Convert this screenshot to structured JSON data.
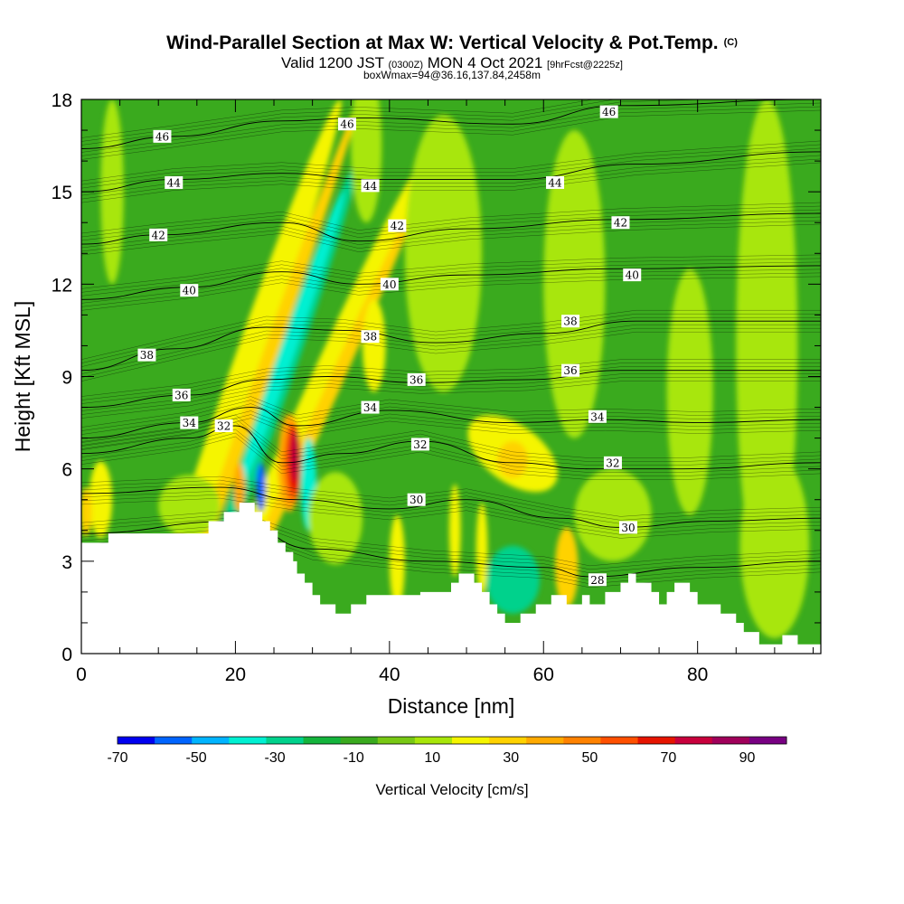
{
  "header": {
    "title": "Wind-Parallel Section at Max W: Vertical Velocity & Pot.Temp.",
    "copyright": "(C)",
    "valid": "Valid 1200 JST",
    "valid_utc": "(0300Z)",
    "date": "MON 4 Oct 2021",
    "forecast": "[9hrFcst@2225z]",
    "box": "boxWmax=94@36.16,137.84,2458m"
  },
  "chart_data": {
    "type": "heatmap",
    "xlabel": "Distance [nm]",
    "ylabel": "Height [Kft MSL]",
    "xlim": [
      0,
      96
    ],
    "ylim": [
      0,
      18
    ],
    "x_ticks": [
      "0",
      "20",
      "40",
      "60",
      "80"
    ],
    "x_tick_values": [
      0,
      20,
      40,
      60,
      80
    ],
    "y_ticks": [
      "0",
      "3",
      "6",
      "9",
      "12",
      "15",
      "18"
    ],
    "y_tick_values": [
      0,
      3,
      6,
      9,
      12,
      15,
      18
    ],
    "x_minor_step": 5,
    "y_minor_step": 1,
    "background_color": "#3aaa1e",
    "terrain_profile": {
      "x": [
        0,
        3.5,
        3.5,
        16.5,
        16.5,
        18.5,
        18.5,
        20.5,
        20.5,
        22.5,
        22.5,
        23.5,
        23.5,
        24.5,
        24.5,
        25.5,
        25.5,
        26.5,
        26.5,
        27.5,
        27.5,
        28,
        28,
        29,
        29,
        30,
        30,
        31,
        31,
        32,
        32,
        33,
        33,
        35,
        35,
        37,
        37,
        40,
        40,
        44,
        44,
        48,
        48,
        49,
        49,
        51,
        51,
        52,
        52,
        53,
        53,
        54,
        54,
        55,
        55,
        57,
        57,
        59,
        59,
        61,
        61,
        63,
        63,
        65,
        65,
        66,
        66,
        68,
        68,
        70,
        70,
        71,
        71,
        72,
        72,
        74,
        74,
        75,
        75,
        76,
        76,
        77,
        77,
        79,
        79,
        80,
        80,
        83,
        83,
        85,
        85,
        86,
        86,
        87,
        87,
        88,
        88,
        91,
        91,
        93,
        93,
        96
      ],
      "y": [
        3.6,
        3.6,
        3.9,
        3.9,
        4.3,
        4.3,
        4.6,
        4.6,
        4.9,
        4.9,
        4.6,
        4.6,
        4.3,
        4.3,
        4.0,
        4.0,
        3.6,
        3.6,
        3.3,
        3.3,
        3.0,
        3.0,
        2.6,
        2.6,
        2.3,
        2.3,
        1.9,
        1.9,
        1.6,
        1.6,
        1.6,
        1.6,
        1.3,
        1.3,
        1.6,
        1.6,
        1.9,
        1.9,
        1.9,
        1.9,
        2.0,
        2.0,
        2.3,
        2.3,
        2.6,
        2.6,
        2.3,
        2.3,
        2.0,
        2.0,
        1.6,
        1.6,
        1.3,
        1.3,
        1.0,
        1.0,
        1.3,
        1.3,
        1.6,
        1.6,
        1.9,
        1.9,
        1.6,
        1.6,
        1.9,
        1.9,
        1.6,
        1.6,
        2.0,
        2.0,
        2.3,
        2.3,
        2.6,
        2.6,
        2.3,
        2.3,
        2.0,
        2.0,
        1.6,
        1.6,
        2.0,
        2.0,
        2.3,
        2.3,
        2.0,
        2.0,
        1.6,
        1.6,
        1.3,
        1.3,
        1.0,
        1.0,
        0.7,
        0.7,
        0.7,
        0.7,
        0.3,
        0.3,
        0.6,
        0.6,
        0.3,
        0.3
      ]
    },
    "vertical_velocity_cells": [
      {
        "x": 21,
        "y": 9,
        "w": 4,
        "h": 18,
        "color": "#f5f500",
        "skew": 0.35
      },
      {
        "x": 23.5,
        "y": 9,
        "w": 2,
        "h": 18,
        "color": "#ffd200",
        "skew": 0.35
      },
      {
        "x": 26,
        "y": 9,
        "w": 3,
        "h": 14,
        "color": "#00d28c",
        "skew": 0.35
      },
      {
        "x": 27,
        "y": 10,
        "w": 2,
        "h": 10,
        "color": "#00f0d2",
        "skew": 0.35
      },
      {
        "x": 30,
        "y": 8,
        "w": 4,
        "h": 16,
        "color": "#f5f500",
        "skew": 0.45
      },
      {
        "x": 31.5,
        "y": 8,
        "w": 2,
        "h": 14,
        "color": "#ffd200",
        "skew": 0.45
      },
      {
        "x": 27,
        "y": 6.2,
        "w": 3,
        "h": 3.2,
        "color": "#ffaa00",
        "skew": 0
      },
      {
        "x": 27.4,
        "y": 6.2,
        "w": 2.2,
        "h": 2.6,
        "color": "#ff6400",
        "skew": 0
      },
      {
        "x": 27.6,
        "y": 6.3,
        "w": 1.6,
        "h": 2.2,
        "color": "#e60000",
        "skew": 0
      },
      {
        "x": 27.8,
        "y": 6.4,
        "w": 1,
        "h": 1.6,
        "color": "#b4003c",
        "skew": 0
      },
      {
        "x": 23.3,
        "y": 5.4,
        "w": 1.2,
        "h": 1.6,
        "color": "#0064ff",
        "skew": 0
      },
      {
        "x": 29.5,
        "y": 5.5,
        "w": 2,
        "h": 3,
        "color": "#00f0d2",
        "skew": 0
      },
      {
        "x": 20.5,
        "y": 5.4,
        "w": 1.5,
        "h": 1.6,
        "color": "#ffaa00",
        "skew": 0
      },
      {
        "x": 2.5,
        "y": 5,
        "w": 3,
        "h": 2.5,
        "color": "#f5f500",
        "skew": 0
      },
      {
        "x": 0.6,
        "y": 4.6,
        "w": 1.5,
        "h": 1.6,
        "color": "#ffd200",
        "skew": 0
      },
      {
        "x": 56,
        "y": 6.5,
        "w": 10,
        "h": 2.5,
        "color": "#f5f500",
        "skew": -0.6
      },
      {
        "x": 56,
        "y": 6.3,
        "w": 4,
        "h": 1.2,
        "color": "#ffd200",
        "skew": 0
      },
      {
        "x": 56,
        "y": 2.4,
        "w": 7,
        "h": 2.2,
        "color": "#00d28c",
        "skew": 0
      },
      {
        "x": 63,
        "y": 2.8,
        "w": 3,
        "h": 2.6,
        "color": "#ffd200",
        "skew": 0
      },
      {
        "x": 41,
        "y": 3,
        "w": 2,
        "h": 3,
        "color": "#f5f500",
        "skew": 0
      },
      {
        "x": 48.5,
        "y": 4,
        "w": 1.5,
        "h": 3,
        "color": "#f5f500",
        "skew": 0
      },
      {
        "x": 52,
        "y": 3.4,
        "w": 1.5,
        "h": 3,
        "color": "#f5f500",
        "skew": 0
      },
      {
        "x": 38,
        "y": 10,
        "w": 3,
        "h": 3,
        "color": "#f5f500",
        "skew": 0
      },
      {
        "x": 79,
        "y": 8.5,
        "w": 6,
        "h": 8,
        "color": "#a8e60a",
        "skew": 0
      },
      {
        "x": 64,
        "y": 12,
        "w": 8,
        "h": 10,
        "color": "#a8e60a",
        "skew": 0
      },
      {
        "x": 47,
        "y": 13,
        "w": 10,
        "h": 9,
        "color": "#a8e60a",
        "skew": 0
      },
      {
        "x": 89,
        "y": 10,
        "w": 8,
        "h": 16,
        "color": "#a8e60a",
        "skew": 0
      },
      {
        "x": 90,
        "y": 3.5,
        "w": 9,
        "h": 6,
        "color": "#a8e60a",
        "skew": 0
      },
      {
        "x": 37,
        "y": 16.5,
        "w": 4,
        "h": 5,
        "color": "#a8e60a",
        "skew": 0
      },
      {
        "x": 14,
        "y": 4.8,
        "w": 8,
        "h": 2,
        "color": "#a8e60a",
        "skew": 0
      },
      {
        "x": 4,
        "y": 15,
        "w": 3,
        "h": 6,
        "color": "#a8e60a",
        "skew": 0
      },
      {
        "x": 33,
        "y": 4.4,
        "w": 7,
        "h": 3,
        "color": "#a8e60a",
        "skew": 0
      },
      {
        "x": 69,
        "y": 4.5,
        "w": 10,
        "h": 3,
        "color": "#a8e60a",
        "skew": 0
      }
    ],
    "isentropes": [
      {
        "level": 28,
        "points": [
          [
            0,
            3.9
          ],
          [
            20,
            4.3
          ],
          [
            30,
            3.4
          ],
          [
            45,
            3.0
          ],
          [
            60,
            2.8
          ],
          [
            66,
            2.5
          ],
          [
            80,
            2.8
          ],
          [
            96,
            3.0
          ]
        ]
      },
      {
        "level": 30,
        "points": [
          [
            0,
            5.2
          ],
          [
            18,
            5.4
          ],
          [
            28,
            5.0
          ],
          [
            40,
            4.7
          ],
          [
            50,
            5.0
          ],
          [
            62,
            4.4
          ],
          [
            70,
            4.1
          ],
          [
            82,
            4.3
          ],
          [
            96,
            4.4
          ]
        ]
      },
      {
        "level": 32,
        "points": [
          [
            0,
            6.5
          ],
          [
            14,
            7.0
          ],
          [
            20,
            7.4
          ],
          [
            26,
            6.2
          ],
          [
            34,
            6.5
          ],
          [
            44,
            6.9
          ],
          [
            56,
            6.2
          ],
          [
            66,
            6.0
          ],
          [
            78,
            6.0
          ],
          [
            96,
            6.2
          ]
        ]
      },
      {
        "level": 34,
        "points": [
          [
            0,
            7.0
          ],
          [
            14,
            7.5
          ],
          [
            22,
            8.0
          ],
          [
            28,
            7.4
          ],
          [
            40,
            7.9
          ],
          [
            56,
            7.5
          ],
          [
            68,
            7.6
          ],
          [
            80,
            7.5
          ],
          [
            96,
            7.6
          ]
        ]
      },
      {
        "level": 36,
        "points": [
          [
            0,
            8.0
          ],
          [
            14,
            8.4
          ],
          [
            24,
            8.9
          ],
          [
            32,
            9.0
          ],
          [
            44,
            8.8
          ],
          [
            58,
            8.9
          ],
          [
            70,
            9.2
          ],
          [
            96,
            9.2
          ]
        ]
      },
      {
        "level": 38,
        "points": [
          [
            0,
            9.2
          ],
          [
            12,
            9.9
          ],
          [
            24,
            10.6
          ],
          [
            34,
            10.5
          ],
          [
            46,
            10.1
          ],
          [
            60,
            10.4
          ],
          [
            72,
            10.8
          ],
          [
            96,
            10.8
          ]
        ]
      },
      {
        "level": 40,
        "points": [
          [
            0,
            11.5
          ],
          [
            14,
            11.9
          ],
          [
            26,
            12.4
          ],
          [
            36,
            12.0
          ],
          [
            50,
            12.3
          ],
          [
            70,
            12.5
          ],
          [
            96,
            12.6
          ]
        ]
      },
      {
        "level": 42,
        "points": [
          [
            0,
            13.3
          ],
          [
            10,
            13.6
          ],
          [
            26,
            14.0
          ],
          [
            36,
            13.4
          ],
          [
            50,
            13.8
          ],
          [
            70,
            14.1
          ],
          [
            96,
            14.3
          ]
        ]
      },
      {
        "level": 44,
        "points": [
          [
            0,
            15.0
          ],
          [
            12,
            15.4
          ],
          [
            26,
            15.6
          ],
          [
            38,
            15.4
          ],
          [
            56,
            15.4
          ],
          [
            72,
            15.9
          ],
          [
            96,
            16.3
          ]
        ]
      },
      {
        "level": 46,
        "points": [
          [
            0,
            16.4
          ],
          [
            12,
            16.8
          ],
          [
            26,
            17.3
          ],
          [
            36,
            17.4
          ],
          [
            56,
            17.2
          ],
          [
            70,
            17.8
          ],
          [
            96,
            18.0
          ]
        ]
      }
    ],
    "isentrope_labels": [
      {
        "text": "46",
        "x": 10.5,
        "y": 16.8
      },
      {
        "text": "46",
        "x": 34.5,
        "y": 17.2
      },
      {
        "text": "46",
        "x": 68.5,
        "y": 17.6
      },
      {
        "text": "44",
        "x": 12,
        "y": 15.3
      },
      {
        "text": "44",
        "x": 37.5,
        "y": 15.2
      },
      {
        "text": "44",
        "x": 61.5,
        "y": 15.3
      },
      {
        "text": "42",
        "x": 10,
        "y": 13.6
      },
      {
        "text": "42",
        "x": 41,
        "y": 13.9
      },
      {
        "text": "42",
        "x": 70,
        "y": 14.0
      },
      {
        "text": "40",
        "x": 14,
        "y": 11.8
      },
      {
        "text": "40",
        "x": 40,
        "y": 12.0
      },
      {
        "text": "40",
        "x": 71.5,
        "y": 12.3
      },
      {
        "text": "38",
        "x": 8.5,
        "y": 9.7
      },
      {
        "text": "38",
        "x": 37.5,
        "y": 10.3
      },
      {
        "text": "38",
        "x": 63.5,
        "y": 10.8
      },
      {
        "text": "36",
        "x": 13,
        "y": 8.4
      },
      {
        "text": "36",
        "x": 43.5,
        "y": 8.9
      },
      {
        "text": "36",
        "x": 63.5,
        "y": 9.2
      },
      {
        "text": "34",
        "x": 14,
        "y": 7.5
      },
      {
        "text": "34",
        "x": 37.5,
        "y": 8.0
      },
      {
        "text": "34",
        "x": 67,
        "y": 7.7
      },
      {
        "text": "32",
        "x": 18.5,
        "y": 7.4
      },
      {
        "text": "32",
        "x": 44,
        "y": 6.8
      },
      {
        "text": "32",
        "x": 69,
        "y": 6.2
      },
      {
        "text": "30",
        "x": 43.5,
        "y": 5.0
      },
      {
        "text": "30",
        "x": 71,
        "y": 4.1
      },
      {
        "text": "28",
        "x": 67,
        "y": 2.4
      }
    ],
    "colorbar": {
      "title": "Vertical Velocity [cm/s]",
      "tick_labels": [
        "-70",
        "-50",
        "-30",
        "-10",
        "10",
        "30",
        "50",
        "70",
        "90"
      ],
      "colors": [
        "#0000f0",
        "#0064ff",
        "#00b4ff",
        "#00f0d2",
        "#00d28c",
        "#14b43c",
        "#3aaa1e",
        "#78c814",
        "#a8e60a",
        "#f5f500",
        "#ffd200",
        "#ffaa00",
        "#ff8200",
        "#ff5000",
        "#e61400",
        "#c8003c",
        "#a0005a",
        "#780082"
      ]
    }
  }
}
